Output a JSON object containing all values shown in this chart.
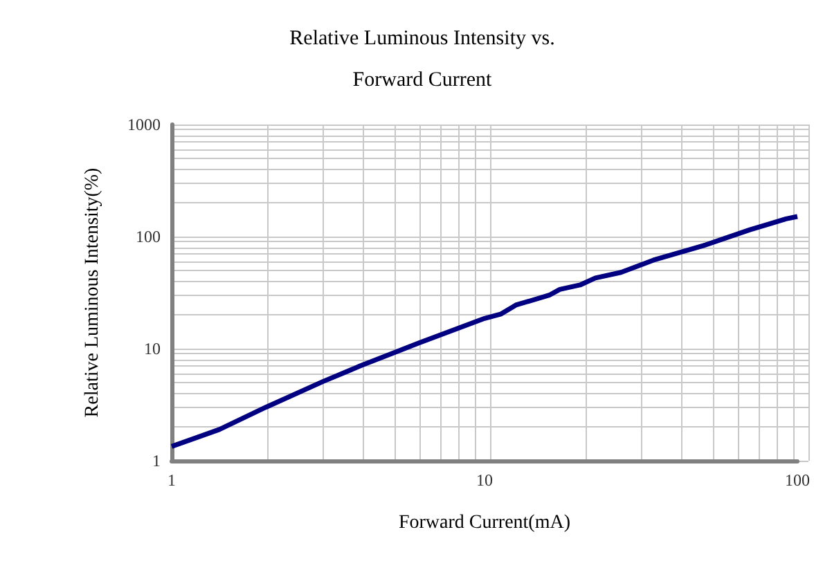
{
  "chart_data": {
    "type": "line",
    "title": "Relative Luminous Intensity vs.\nForward Current",
    "xlabel": "Forward Current(mA)",
    "ylabel": "Relative Luminous Intensity(%)",
    "log": "xy",
    "grid": true,
    "marker": "none",
    "line_style": "solid",
    "series": [
      {
        "color": "#000080",
        "x": [
          1,
          1.42,
          2.0,
          3.05,
          4.0,
          6.15,
          10,
          11.3,
          12.6,
          16.1,
          17.4,
          20.2,
          22.6,
          27.3,
          34.7,
          46,
          50,
          70.5,
          80.8,
          92,
          100
        ],
        "values": [
          1.34,
          1.9,
          3.0,
          5.1,
          7.0,
          11.2,
          18.6,
          20.4,
          24.5,
          30,
          33.8,
          37,
          42.7,
          47.9,
          61.7,
          77.6,
          83,
          115,
          129,
          144,
          151
        ]
      }
    ],
    "xlim": [
      1,
      100
    ],
    "xticks": [
      1,
      10,
      100
    ],
    "ylim": [
      1,
      1000
    ],
    "yticks": [
      1,
      10,
      100,
      1000
    ]
  }
}
